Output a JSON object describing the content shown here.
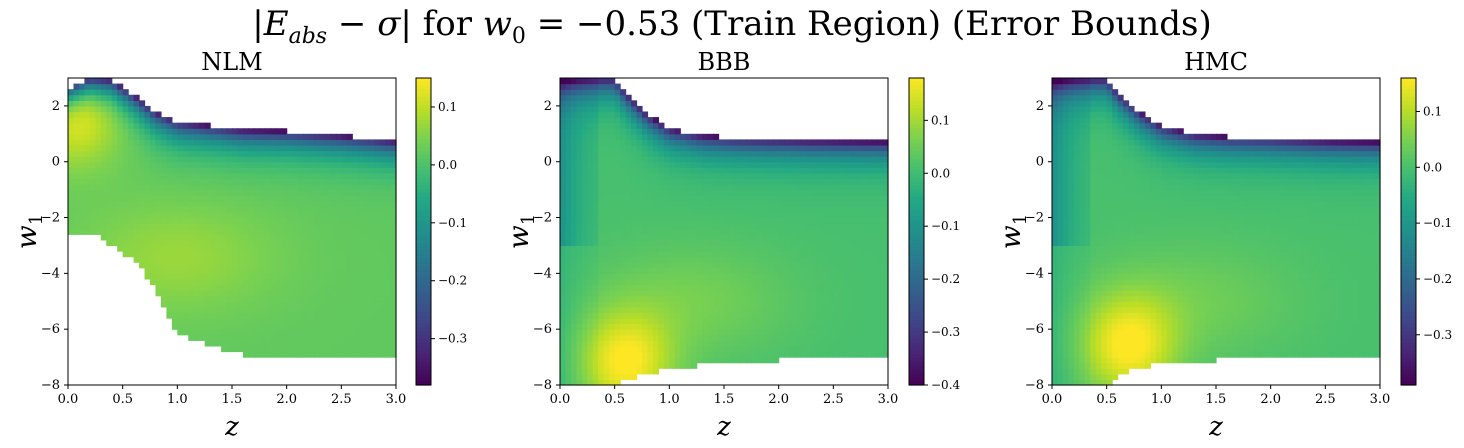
{
  "figure": {
    "title_parts": {
      "e": "E",
      "abs": "abs",
      "sigma": "σ",
      "for": "for",
      "w": "w",
      "w_sub": "0",
      "value": "= −0.53 (Train Region) (Error Bounds)"
    }
  },
  "chart_data": [
    {
      "type": "heatmap",
      "title": "NLM",
      "xlabel": "z",
      "ylabel": "w1",
      "xlim": [
        0.0,
        3.0
      ],
      "ylim": [
        -8,
        3
      ],
      "xticks": [
        "0.0",
        "0.5",
        "1.0",
        "1.5",
        "2.0",
        "2.5",
        "3.0"
      ],
      "yticks": [
        "−8",
        "−6",
        "−4",
        "−2",
        "0",
        "2"
      ],
      "colormap": "viridis",
      "colorbar": {
        "min": -0.38,
        "max": 0.15,
        "ticks": [
          "0.1",
          "0.0",
          "−0.1",
          "−0.2",
          "−0.3"
        ],
        "tick_values": [
          0.1,
          0.0,
          -0.1,
          -0.2,
          -0.3
        ]
      },
      "upper_boundary": [
        [
          0.0,
          2.6
        ],
        [
          0.2,
          2.95
        ],
        [
          0.4,
          2.9
        ],
        [
          0.6,
          2.4
        ],
        [
          0.8,
          1.8
        ],
        [
          1.0,
          1.45
        ],
        [
          1.3,
          1.3
        ],
        [
          1.6,
          1.15
        ],
        [
          2.0,
          1.1
        ],
        [
          2.5,
          0.95
        ],
        [
          3.0,
          0.75
        ]
      ],
      "lower_boundary": [
        [
          0.0,
          -2.5
        ],
        [
          0.3,
          -2.7
        ],
        [
          0.6,
          -3.5
        ],
        [
          0.8,
          -4.5
        ],
        [
          0.9,
          -5.5
        ],
        [
          1.0,
          -6.1
        ],
        [
          1.3,
          -6.6
        ],
        [
          1.6,
          -6.9
        ],
        [
          2.0,
          -7.0
        ],
        [
          2.5,
          -7.05
        ],
        [
          3.0,
          -7.1
        ]
      ],
      "hot_center": [
        0.05,
        1.8
      ],
      "hot_value": 0.15,
      "secondary_center": [
        1.0,
        -3.4
      ],
      "secondary_value": 0.05,
      "min_value": -0.38,
      "base_value": 0.02
    },
    {
      "type": "heatmap",
      "title": "BBB",
      "xlabel": "z",
      "ylabel": "w1",
      "xlim": [
        0.0,
        3.0
      ],
      "ylim": [
        -8,
        3
      ],
      "xticks": [
        "0.0",
        "0.5",
        "1.0",
        "1.5",
        "2.0",
        "2.5",
        "3.0"
      ],
      "yticks": [
        "−8",
        "−6",
        "−4",
        "−2",
        "0",
        "2"
      ],
      "colormap": "viridis",
      "colorbar": {
        "min": -0.4,
        "max": 0.18,
        "ticks": [
          "0.1",
          "0.0",
          "−0.1",
          "−0.2",
          "−0.3",
          "−0.4"
        ],
        "tick_values": [
          0.1,
          0.0,
          -0.1,
          -0.2,
          -0.3,
          -0.4
        ]
      },
      "upper_boundary": [
        [
          0.0,
          3.0
        ],
        [
          0.5,
          3.0
        ],
        [
          0.6,
          2.5
        ],
        [
          0.8,
          1.7
        ],
        [
          1.0,
          1.2
        ],
        [
          1.3,
          0.95
        ],
        [
          1.6,
          0.85
        ],
        [
          2.0,
          0.8
        ],
        [
          2.5,
          0.75
        ],
        [
          3.0,
          0.72
        ]
      ],
      "lower_boundary": [
        [
          0.0,
          -8.0
        ],
        [
          0.5,
          -8.0
        ],
        [
          0.8,
          -7.6
        ],
        [
          1.0,
          -7.4
        ],
        [
          1.5,
          -7.2
        ],
        [
          2.0,
          -7.1
        ],
        [
          2.5,
          -7.05
        ],
        [
          3.0,
          -7.0
        ]
      ],
      "hot_center": [
        0.6,
        -7.2
      ],
      "hot_value": 0.18,
      "secondary_center": [
        1.2,
        -5.0
      ],
      "secondary_value": 0.05,
      "min_value": -0.4,
      "base_value": 0.01
    },
    {
      "type": "heatmap",
      "title": "HMC",
      "xlabel": "z",
      "ylabel": "w1",
      "xlim": [
        0.0,
        3.0
      ],
      "ylim": [
        -8,
        3
      ],
      "xticks": [
        "0.0",
        "0.5",
        "1.0",
        "1.5",
        "2.0",
        "2.5",
        "3.0"
      ],
      "yticks": [
        "−8",
        "−6",
        "−4",
        "−2",
        "0",
        "2"
      ],
      "colormap": "viridis",
      "colorbar": {
        "min": -0.39,
        "max": 0.16,
        "ticks": [
          "0.1",
          "0.0",
          "−0.1",
          "−0.2",
          "−0.3"
        ],
        "tick_values": [
          0.1,
          0.0,
          -0.1,
          -0.2,
          -0.3
        ]
      },
      "upper_boundary": [
        [
          0.0,
          3.0
        ],
        [
          0.5,
          3.0
        ],
        [
          0.6,
          2.5
        ],
        [
          0.8,
          1.8
        ],
        [
          1.0,
          1.3
        ],
        [
          1.3,
          1.0
        ],
        [
          1.6,
          0.9
        ],
        [
          2.0,
          0.85
        ],
        [
          2.5,
          0.75
        ],
        [
          3.0,
          0.7
        ]
      ],
      "lower_boundary": [
        [
          0.0,
          -8.0
        ],
        [
          0.5,
          -8.0
        ],
        [
          0.7,
          -7.5
        ],
        [
          1.0,
          -7.2
        ],
        [
          1.5,
          -7.1
        ],
        [
          2.0,
          -7.05
        ],
        [
          2.5,
          -7.05
        ],
        [
          3.0,
          -7.0
        ]
      ],
      "hot_center": [
        0.7,
        -6.6
      ],
      "hot_value": 0.16,
      "secondary_center": [
        1.3,
        -5.0
      ],
      "secondary_value": 0.04,
      "min_value": -0.39,
      "base_value": 0.0
    }
  ]
}
